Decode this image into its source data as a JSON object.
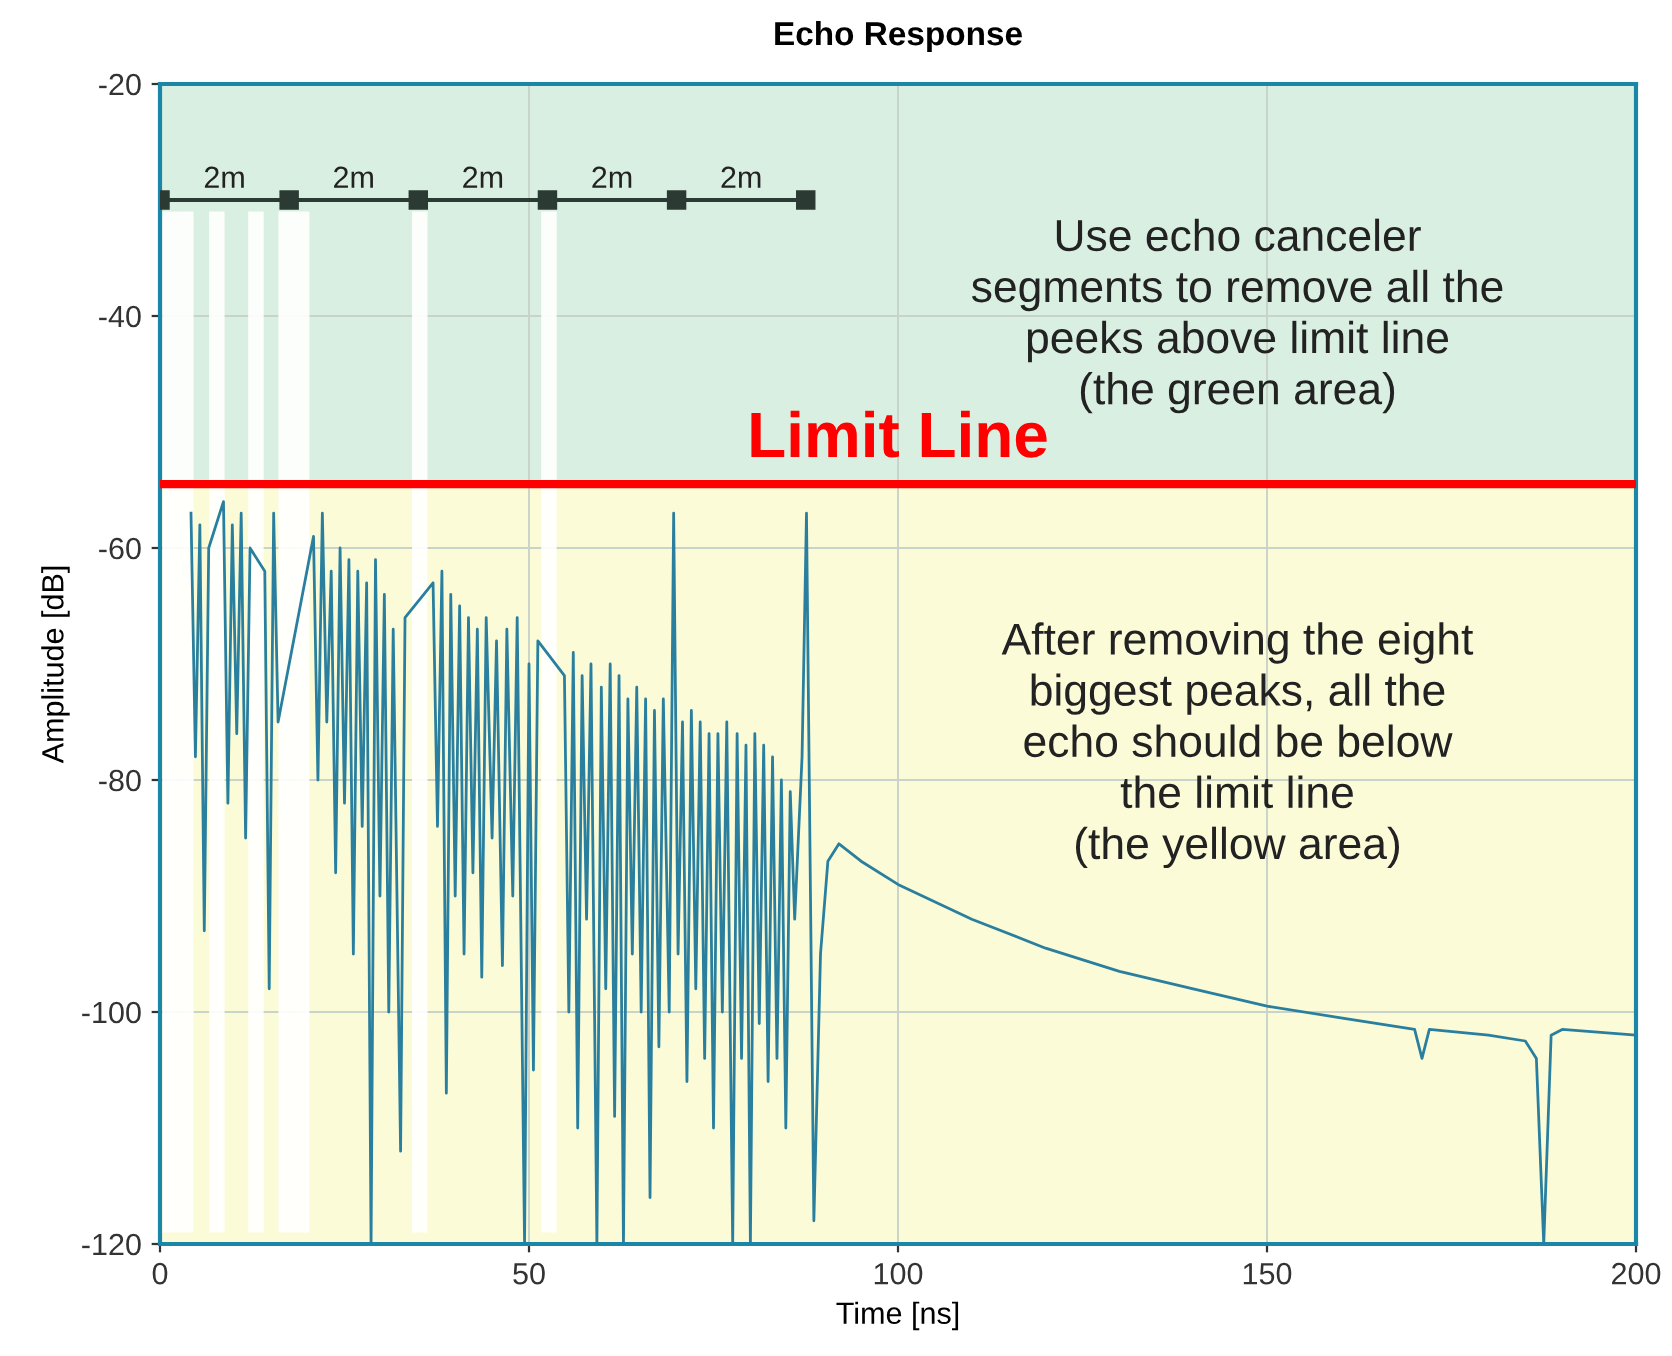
{
  "chart_data": {
    "type": "line",
    "title": "Echo Response",
    "xlabel": "Time [ns]",
    "ylabel": "Amplitude [dB]",
    "xlim": [
      0,
      200
    ],
    "ylim": [
      -120,
      -20
    ],
    "xticks": [
      0,
      50,
      100,
      150,
      200
    ],
    "yticks": [
      -120,
      -100,
      -80,
      -60,
      -40,
      -20
    ],
    "grid": true,
    "bands": [
      {
        "axis": "y",
        "from": -54.5,
        "to": -20,
        "color": "#d9efe1"
      },
      {
        "axis": "y",
        "from": -120,
        "to": -54.5,
        "color": "#fbfbd8"
      }
    ],
    "ref_lines": [
      {
        "axis": "y",
        "value": -54.5,
        "label": "Limit Line",
        "color": "#ff0000"
      }
    ],
    "series": [
      {
        "type": "bar",
        "color": "#ffffff",
        "x": [
          1.4,
          3.5,
          7.7,
          13.0,
          17.1,
          19.2,
          35.2,
          52.7
        ],
        "base": [
          -119,
          -119,
          -119,
          -119,
          -119,
          -119,
          -119,
          -119
        ],
        "values": [
          88,
          88,
          88,
          88,
          88,
          88,
          88,
          88
        ]
      },
      {
        "color": "#2a7f9e",
        "marker": "none",
        "x": [
          4.2,
          4.8,
          5.4,
          6.0,
          6.6,
          8.6,
          9.2,
          9.8,
          10.4,
          11.0,
          11.6,
          12.2,
          14.2,
          14.8,
          15.4,
          16.0,
          20.8,
          21.4,
          22.0,
          22.6,
          23.2,
          23.8,
          24.4,
          25.0,
          25.6,
          26.2,
          26.8,
          27.4,
          28.0,
          28.6,
          29.2,
          29.8,
          30.4,
          31.0,
          31.6,
          32.6,
          33.2,
          37.0,
          37.6,
          38.2,
          38.8,
          39.4,
          40.0,
          40.6,
          41.2,
          41.8,
          42.4,
          43.0,
          43.6,
          44.2,
          45.0,
          45.6,
          46.4,
          47.0,
          47.8,
          48.4,
          49.4,
          50.0,
          50.6,
          51.2,
          54.8,
          55.4,
          56.0,
          56.6,
          57.2,
          57.8,
          58.4,
          59.2,
          59.8,
          60.4,
          61.0,
          61.6,
          62.2,
          62.8,
          63.4,
          64.0,
          64.6,
          65.2,
          65.8,
          66.4,
          67.0,
          67.6,
          68.2,
          69.0,
          69.6,
          70.2,
          70.8,
          71.4,
          72.0,
          72.6,
          73.2,
          73.8,
          74.4,
          75.0,
          75.6,
          76.2,
          76.8,
          77.6,
          78.2,
          78.8,
          79.4,
          80.0,
          80.6,
          81.2,
          81.8,
          82.4,
          83.0,
          83.6,
          84.2,
          84.8,
          85.4,
          86.0,
          87.0,
          87.6,
          88.6,
          89.5,
          90.5,
          92,
          95,
          100,
          110,
          120,
          130,
          140,
          150,
          160,
          170,
          171,
          172,
          180,
          185,
          186.5,
          187.5,
          188.5,
          190,
          200
        ],
        "values": [
          -57,
          -78,
          -58,
          -93,
          -60,
          -56,
          -82,
          -58,
          -76,
          -57,
          -85,
          -60,
          -62,
          -98,
          -57,
          -75,
          -59,
          -80,
          -57,
          -75,
          -62,
          -88,
          -60,
          -82,
          -61,
          -95,
          -62,
          -84,
          -63,
          -120,
          -61,
          -90,
          -64,
          -100,
          -67,
          -112,
          -66,
          -63,
          -84,
          -62,
          -107,
          -64,
          -90,
          -65,
          -95,
          -66,
          -88,
          -67,
          -97,
          -66,
          -85,
          -68,
          -96,
          -67,
          -90,
          -66,
          -120,
          -70,
          -105,
          -68,
          -71,
          -100,
          -69,
          -110,
          -71,
          -92,
          -70,
          -120,
          -72,
          -98,
          -70,
          -109,
          -71,
          -120,
          -73,
          -95,
          -72,
          -100,
          -73,
          -116,
          -74,
          -103,
          -73,
          -100,
          -57,
          -95,
          -75,
          -106,
          -74,
          -98,
          -75,
          -104,
          -76,
          -110,
          -76,
          -100,
          -75,
          -120,
          -76,
          -104,
          -77,
          -120,
          -76,
          -101,
          -77,
          -106,
          -78,
          -104,
          -80,
          -110,
          -81,
          -92,
          -78,
          -57,
          -118,
          -95,
          -87,
          -85.5,
          -87,
          -89,
          -92,
          -94.5,
          -96.5,
          -98,
          -99.5,
          -100.5,
          -101.5,
          -104,
          -101.5,
          -102,
          -102.5,
          -104,
          -120,
          -102,
          -101.5,
          -102
        ]
      },
      {
        "type": "line",
        "color": "#2b3a33",
        "marker": "square",
        "x": [
          0,
          17.5,
          35,
          52.5,
          70,
          87.5
        ],
        "values": [
          -30,
          -30,
          -30,
          -30,
          -30,
          -30
        ]
      }
    ],
    "annotations": [
      {
        "text": "2m",
        "x": 8.75,
        "y": -30
      },
      {
        "text": "2m",
        "x": 26.25,
        "y": -30
      },
      {
        "text": "2m",
        "x": 43.75,
        "y": -30
      },
      {
        "text": "2m",
        "x": 61.25,
        "y": -30
      },
      {
        "text": "2m",
        "x": 78.75,
        "y": -30
      },
      "Use echo canceler\nsegments to remove all the\npeeks above limit line\n(the green area)",
      "After removing the eight\nbiggest peaks, all the\necho should be below\nthe limit line\n(the yellow area)"
    ]
  }
}
